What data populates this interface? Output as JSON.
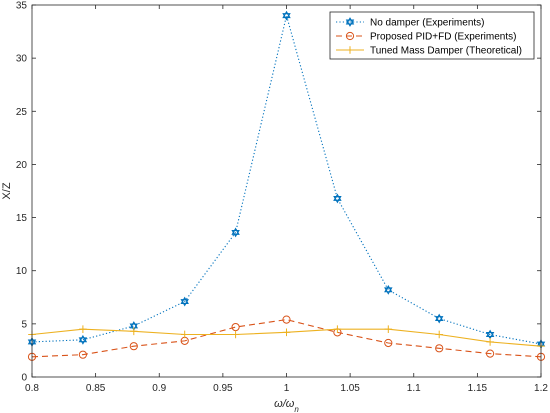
{
  "chart_data": {
    "type": "line",
    "title": "",
    "xlabel": "ω/ωn",
    "xlabel_main": "ω/ω",
    "xlabel_sub": "n",
    "ylabel": "X/Z",
    "xlim": [
      0.8,
      1.2
    ],
    "ylim": [
      0,
      35
    ],
    "xticks": [
      0.8,
      0.85,
      0.9,
      0.95,
      1,
      1.05,
      1.1,
      1.15,
      1.2
    ],
    "xtick_labels": [
      "0.8",
      "0.85",
      "0.9",
      "0.95",
      "1",
      "1.05",
      "1.1",
      "1.15",
      "1.2"
    ],
    "yticks": [
      0,
      5,
      10,
      15,
      20,
      25,
      30,
      35
    ],
    "ytick_labels": [
      "0",
      "5",
      "10",
      "15",
      "20",
      "25",
      "30",
      "35"
    ],
    "grid": false,
    "legend_position": "top-right",
    "series": [
      {
        "name": "No damper (Experiments)",
        "color": "#0072BD",
        "line_style": "dotted",
        "marker": "hexagram",
        "x": [
          0.8,
          0.84,
          0.88,
          0.92,
          0.96,
          1.0,
          1.04,
          1.08,
          1.12,
          1.16,
          1.2
        ],
        "y": [
          3.3,
          3.5,
          4.8,
          7.1,
          13.6,
          34.0,
          16.8,
          8.2,
          5.5,
          4.0,
          3.1
        ]
      },
      {
        "name": "Proposed PID+FD (Experiments)",
        "color": "#D95319",
        "line_style": "dashed",
        "marker": "circle",
        "x": [
          0.8,
          0.84,
          0.88,
          0.92,
          0.96,
          1.0,
          1.04,
          1.08,
          1.12,
          1.16,
          1.2
        ],
        "y": [
          1.9,
          2.1,
          2.9,
          3.4,
          4.7,
          5.4,
          4.2,
          3.2,
          2.7,
          2.2,
          1.9
        ]
      },
      {
        "name": "Tuned Mass Damper (Theoretical)",
        "color": "#EDB120",
        "line_style": "solid",
        "marker": "plus",
        "x": [
          0.8,
          0.84,
          0.88,
          0.92,
          0.96,
          1.0,
          1.04,
          1.08,
          1.12,
          1.16,
          1.2
        ],
        "y": [
          4.0,
          4.5,
          4.3,
          4.0,
          4.0,
          4.2,
          4.5,
          4.5,
          4.0,
          3.3,
          2.9
        ]
      }
    ]
  }
}
